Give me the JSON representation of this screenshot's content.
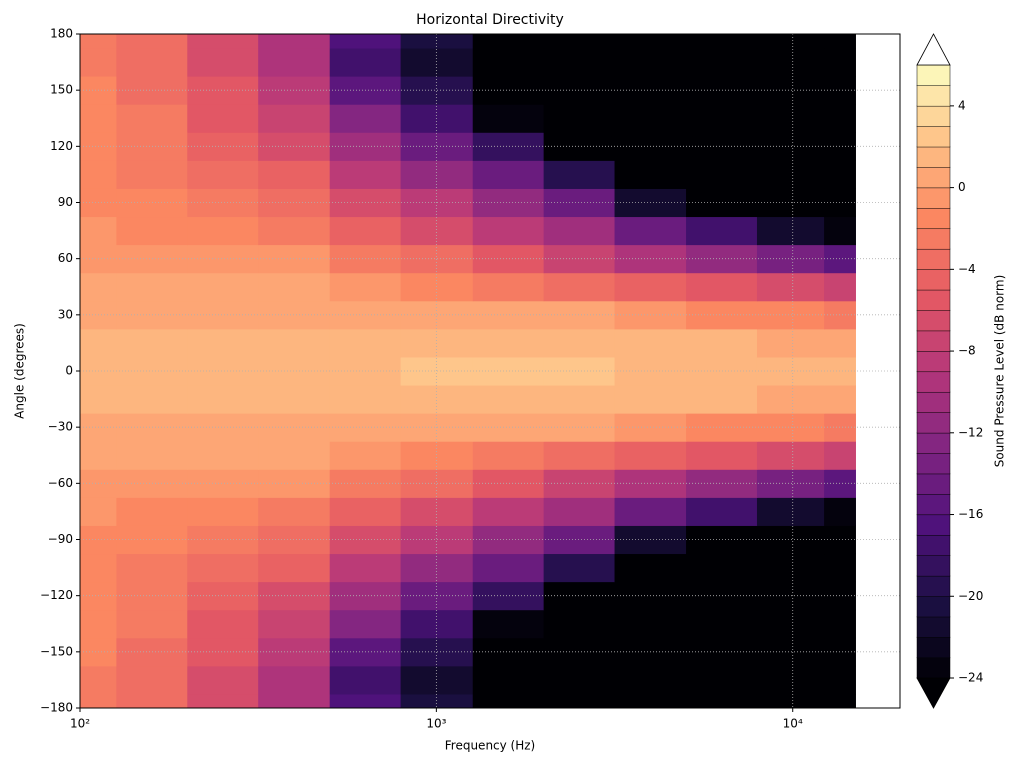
{
  "chart_data": {
    "type": "contourf",
    "title": "Horizontal Directivity",
    "x_label": "Frequency (Hz)",
    "y_label": "Angle (degrees)",
    "colorbar_label": "Sound Pressure Level (dB norm)",
    "x": [
      100,
      160,
      250,
      400,
      630,
      1000,
      1600,
      2500,
      4000,
      6300,
      10000,
      15000
    ],
    "y": [
      -180,
      -165,
      -150,
      -135,
      -120,
      -105,
      -90,
      -75,
      -60,
      -45,
      -30,
      -15,
      0,
      15,
      30,
      45,
      60,
      75,
      90,
      105,
      120,
      135,
      150,
      165,
      180
    ],
    "z": [
      [
        -3,
        -4,
        -7,
        -10,
        -17,
        -21,
        -25,
        -25,
        -25,
        -25,
        -25,
        -25
      ],
      [
        -3,
        -4,
        -7,
        -10,
        -18,
        -22,
        -25,
        -25,
        -25,
        -25,
        -25,
        -25
      ],
      [
        -2,
        -4,
        -6,
        -9,
        -16,
        -20,
        -25,
        -25,
        -25,
        -25,
        -25,
        -25
      ],
      [
        -2,
        -3,
        -6,
        -8,
        -13,
        -18,
        -24,
        -25,
        -25,
        -25,
        -25,
        -25
      ],
      [
        -2,
        -3,
        -5,
        -7,
        -11,
        -15,
        -19,
        -25,
        -25,
        -25,
        -25,
        -25
      ],
      [
        -2,
        -3,
        -4,
        -5,
        -9,
        -12,
        -15,
        -20,
        -25,
        -25,
        -25,
        -25
      ],
      [
        -2,
        -2,
        -3,
        -4,
        -7,
        -9,
        -12,
        -15,
        -22,
        -25,
        -25,
        -25
      ],
      [
        -1,
        -2,
        -2,
        -3,
        -5,
        -7,
        -9,
        -11,
        -15,
        -18,
        -22,
        -24
      ],
      [
        -1,
        -1,
        -1,
        -1,
        -3,
        -4,
        -6,
        -8,
        -10,
        -12,
        -14,
        -16
      ],
      [
        0,
        0,
        0,
        0,
        -1,
        -2,
        -3,
        -4,
        -5,
        -6,
        -7,
        -8
      ],
      [
        0,
        0,
        0,
        0,
        0,
        0,
        0,
        0,
        -1,
        -2,
        -2,
        -3
      ],
      [
        1,
        1,
        1,
        1,
        1,
        1,
        1,
        1,
        1,
        1,
        0,
        0
      ],
      [
        1,
        1,
        1,
        1,
        1,
        2,
        2,
        2,
        1,
        1,
        1,
        1
      ],
      [
        1,
        1,
        1,
        1,
        1,
        1,
        1,
        1,
        1,
        1,
        0,
        0
      ],
      [
        0,
        0,
        0,
        0,
        0,
        0,
        0,
        0,
        -1,
        -2,
        -2,
        -3
      ],
      [
        0,
        0,
        0,
        0,
        -1,
        -2,
        -3,
        -4,
        -5,
        -6,
        -7,
        -8
      ],
      [
        -1,
        -1,
        -1,
        -1,
        -3,
        -4,
        -6,
        -8,
        -10,
        -12,
        -14,
        -16
      ],
      [
        -1,
        -2,
        -2,
        -3,
        -5,
        -7,
        -9,
        -11,
        -15,
        -18,
        -22,
        -24
      ],
      [
        -2,
        -2,
        -3,
        -4,
        -7,
        -9,
        -12,
        -15,
        -22,
        -25,
        -25,
        -25
      ],
      [
        -2,
        -3,
        -4,
        -5,
        -9,
        -12,
        -15,
        -20,
        -25,
        -25,
        -25,
        -25
      ],
      [
        -2,
        -3,
        -5,
        -7,
        -11,
        -15,
        -19,
        -25,
        -25,
        -25,
        -25,
        -25
      ],
      [
        -2,
        -3,
        -6,
        -8,
        -13,
        -18,
        -24,
        -25,
        -25,
        -25,
        -25,
        -25
      ],
      [
        -2,
        -4,
        -6,
        -9,
        -16,
        -20,
        -25,
        -25,
        -25,
        -25,
        -25,
        -25
      ],
      [
        -3,
        -4,
        -7,
        -10,
        -18,
        -22,
        -25,
        -25,
        -25,
        -25,
        -25,
        -25
      ],
      [
        -3,
        -4,
        -7,
        -10,
        -17,
        -21,
        -25,
        -25,
        -25,
        -25,
        -25,
        -25
      ]
    ],
    "xscale": "log",
    "xlim": [
      100,
      20000
    ],
    "xticks": [
      {
        "value": 100,
        "label": "10²"
      },
      {
        "value": 1000,
        "label": "10³"
      },
      {
        "value": 10000,
        "label": "10⁴"
      }
    ],
    "ylim": [
      -180,
      180
    ],
    "yticks": [
      {
        "value": -180,
        "label": "−180"
      },
      {
        "value": -150,
        "label": "−150"
      },
      {
        "value": -120,
        "label": "−120"
      },
      {
        "value": -90,
        "label": "−90"
      },
      {
        "value": -60,
        "label": "−60"
      },
      {
        "value": -30,
        "label": "−30"
      },
      0,
      30,
      60,
      90,
      120,
      150,
      180
    ],
    "cmap": "magma",
    "clim": [
      -24,
      6
    ],
    "level_step": 1,
    "cticks": [
      {
        "value": -24,
        "label": "−24"
      },
      {
        "value": -20,
        "label": "−20"
      },
      {
        "value": -16,
        "label": "−16"
      },
      {
        "value": -12,
        "label": "−12"
      },
      {
        "value": -8,
        "label": "−8"
      },
      {
        "value": -4,
        "label": "−4"
      },
      0,
      4
    ],
    "grid": true
  }
}
